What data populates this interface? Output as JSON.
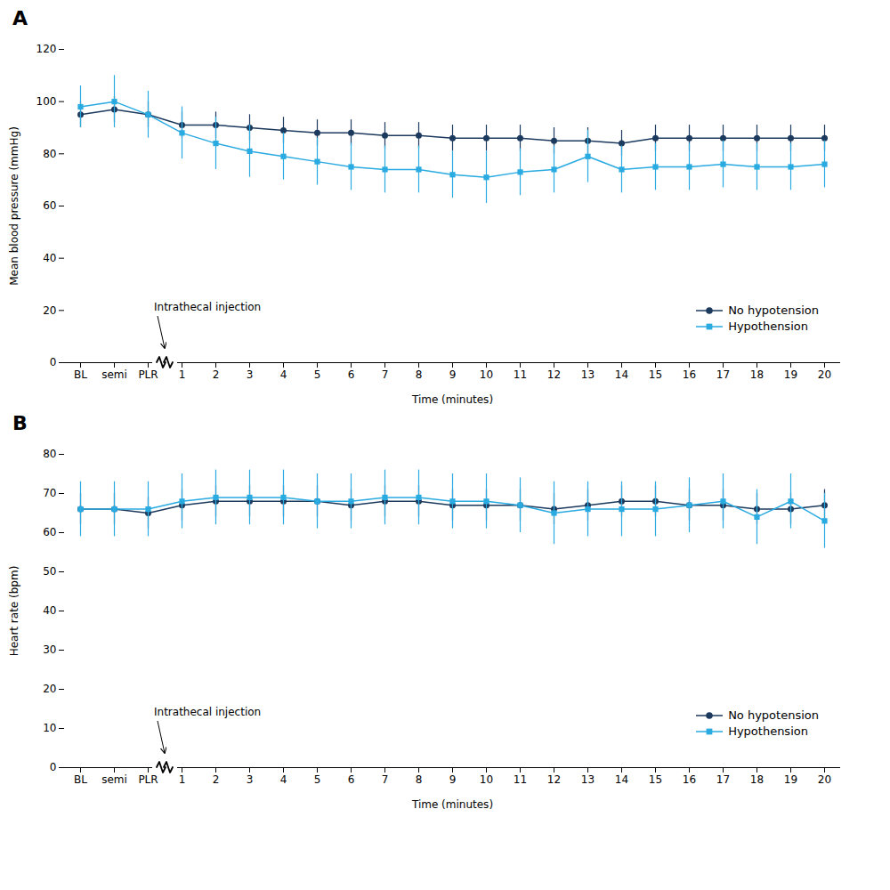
{
  "chart_data": [
    {
      "type": "line",
      "title": "A",
      "xlabel": "Time (minutes)",
      "ylabel": "Mean blood pressure (mmHg)",
      "categories": [
        "BL",
        "semi",
        "PLR",
        "1",
        "2",
        "3",
        "4",
        "5",
        "6",
        "7",
        "8",
        "9",
        "10",
        "11",
        "12",
        "13",
        "14",
        "15",
        "16",
        "17",
        "18",
        "19",
        "20"
      ],
      "ylim": [
        0,
        120
      ],
      "yticks": [
        0,
        20,
        40,
        60,
        80,
        100,
        120
      ],
      "grid": false,
      "legend": "lower right",
      "annotation": "Intrathecal injection",
      "series": [
        {
          "name": "No hypotension",
          "color": "#1c3a5e",
          "marker": "circle",
          "values": [
            95,
            97,
            95,
            91,
            91,
            90,
            89,
            88,
            88,
            87,
            87,
            86,
            86,
            86,
            85,
            85,
            84,
            86,
            86,
            86,
            86,
            86,
            86
          ],
          "errors": [
            5,
            5,
            5,
            5,
            5,
            5,
            5,
            5,
            5,
            5,
            5,
            5,
            5,
            5,
            5,
            5,
            5,
            5,
            5,
            5,
            5,
            5,
            5
          ]
        },
        {
          "name": "Hypothension",
          "color": "#29aae1",
          "marker": "square",
          "values": [
            98,
            100,
            95,
            88,
            84,
            81,
            79,
            77,
            75,
            74,
            74,
            72,
            71,
            73,
            74,
            79,
            74,
            75,
            75,
            76,
            75,
            75,
            76
          ],
          "errors": [
            8,
            10,
            9,
            10,
            10,
            10,
            9,
            9,
            9,
            9,
            9,
            9,
            10,
            9,
            9,
            10,
            9,
            9,
            9,
            9,
            9,
            9,
            9
          ]
        }
      ]
    },
    {
      "type": "line",
      "title": "B",
      "xlabel": "Time (minutes)",
      "ylabel": "Heart rate (bpm)",
      "categories": [
        "BL",
        "semi",
        "PLR",
        "1",
        "2",
        "3",
        "4",
        "5",
        "6",
        "7",
        "8",
        "9",
        "10",
        "11",
        "12",
        "13",
        "14",
        "15",
        "16",
        "17",
        "18",
        "19",
        "20"
      ],
      "ylim": [
        0,
        80
      ],
      "yticks": [
        0,
        10,
        20,
        30,
        40,
        50,
        60,
        70,
        80
      ],
      "grid": false,
      "legend": "lower right",
      "annotation": "Intrathecal injection",
      "series": [
        {
          "name": "No hypotension",
          "color": "#1c3a5e",
          "marker": "circle",
          "values": [
            66,
            66,
            65,
            67,
            68,
            68,
            68,
            68,
            67,
            68,
            68,
            67,
            67,
            67,
            66,
            67,
            68,
            68,
            67,
            67,
            66,
            66,
            67
          ],
          "errors": [
            4,
            4,
            4,
            4,
            4,
            4,
            4,
            4,
            4,
            4,
            4,
            4,
            4,
            4,
            4,
            4,
            4,
            4,
            4,
            4,
            4,
            4,
            4
          ]
        },
        {
          "name": "Hypothension",
          "color": "#29aae1",
          "marker": "square",
          "values": [
            66,
            66,
            66,
            68,
            69,
            69,
            69,
            68,
            68,
            69,
            69,
            68,
            68,
            67,
            65,
            66,
            66,
            66,
            67,
            68,
            64,
            68,
            63
          ],
          "errors": [
            7,
            7,
            7,
            7,
            7,
            7,
            7,
            7,
            7,
            7,
            7,
            7,
            7,
            7,
            8,
            7,
            7,
            7,
            7,
            7,
            7,
            7,
            7
          ]
        }
      ]
    }
  ]
}
